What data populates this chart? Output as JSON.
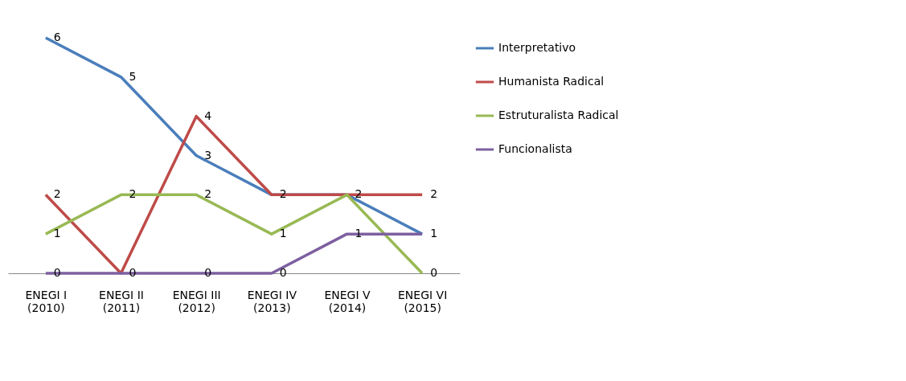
{
  "chart_data": {
    "type": "line",
    "categories": [
      "ENEGI I\n(2010)",
      "ENEGI II\n(2011)",
      "ENEGI III\n(2012)",
      "ENEGI IV\n(2013)",
      "ENEGI V\n(2014)",
      "ENEGI VI\n(2015)"
    ],
    "series": [
      {
        "name": "Interpretativo",
        "color": "#4a7ebb",
        "values": [
          6,
          5,
          3,
          2,
          2,
          1
        ],
        "value_labels": [
          "6",
          "5",
          "3",
          "2",
          "2",
          "1"
        ]
      },
      {
        "name": "Humanista Radical",
        "color": "#be4b48",
        "values": [
          2,
          0,
          4,
          2,
          2,
          2
        ],
        "value_labels": [
          "2",
          "0",
          "4",
          null,
          null,
          "2"
        ]
      },
      {
        "name": "Estruturalista Radical",
        "color": "#98b954",
        "values": [
          1,
          2,
          2,
          1,
          2,
          0
        ],
        "value_labels": [
          "1",
          "2",
          "2",
          "1",
          null,
          "0"
        ]
      },
      {
        "name": "Funcionalista",
        "color": "#7d60a0",
        "values": [
          0,
          0,
          0,
          0,
          1,
          1
        ],
        "value_labels": [
          "0",
          null,
          "0",
          "0",
          "1",
          null
        ]
      }
    ],
    "legend": "top right",
    "grid": false,
    "marker": "none",
    "line_style": "solid",
    "tick_labels": "x"
  }
}
